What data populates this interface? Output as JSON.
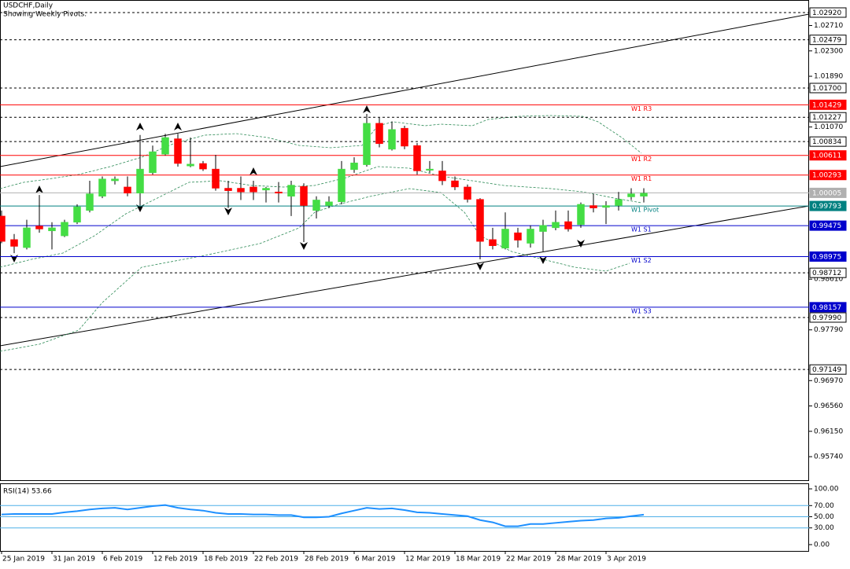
{
  "chart_data": [
    {
      "type": "candlestick",
      "title": "USDCHF,Daily",
      "subtitle": "Showing Weekly Pivots.",
      "categories": [
        "25 Jan 2019",
        null,
        null,
        null,
        "31 Jan 2019",
        null,
        null,
        null,
        "6 Feb 2019",
        null,
        null,
        null,
        "12 Feb 2019",
        null,
        null,
        null,
        "18 Feb 2019",
        null,
        null,
        null,
        "22 Feb 2019",
        null,
        null,
        null,
        "28 Feb 2019",
        null,
        null,
        null,
        "6 Mar 2019",
        null,
        null,
        null,
        "12 Mar 2019",
        null,
        null,
        null,
        "18 Mar 2019",
        null,
        null,
        null,
        "22 Mar 2019",
        null,
        null,
        null,
        "28 Mar 2019",
        null,
        null,
        null,
        "3 Apr 2019",
        null,
        null,
        null
      ],
      "open": [
        0.9963,
        0.9925,
        0.9912,
        0.9947,
        0.9939,
        0.9931,
        0.9953,
        0.9972,
        0.9995,
        1.002,
        1.001,
        1.0,
        1.0033,
        1.0063,
        1.0088,
        1.0044,
        1.0048,
        1.0039,
        1.0008,
        1.0008,
        1.001,
        1.0005,
        1.0002,
        0.9995,
        1.0011,
        0.9972,
        0.998,
        0.9986,
        1.0038,
        1.0046,
        1.0113,
        1.0071,
        1.0105,
        1.0077,
        1.0037,
        1.0036,
        1.002,
        1.001,
        0.999,
        0.9925,
        0.9911,
        0.9936,
        0.9919,
        0.9938,
        0.9944,
        0.9954,
        0.9949,
        0.998,
        0.9977,
        0.998,
        0.9994,
        0.9995
      ],
      "high": [
        0.9972,
        0.9934,
        0.9957,
        0.9997,
        0.9953,
        0.9957,
        0.9982,
        1.002,
        1.0027,
        1.0027,
        1.0027,
        1.0094,
        1.0077,
        1.0096,
        1.0096,
        1.009,
        1.0052,
        1.0062,
        1.002,
        1.0027,
        1.002,
        1.001,
        1.0018,
        1.002,
        1.0016,
        0.9995,
        0.9995,
        1.0052,
        1.0058,
        1.0128,
        1.0122,
        1.0116,
        1.0109,
        1.0081,
        1.0052,
        1.0052,
        1.0027,
        1.0014,
        0.9992,
        0.9944,
        0.9969,
        0.9944,
        0.9948,
        0.9957,
        0.9972,
        0.9972,
        0.9985,
        0.9999,
        0.9987,
        1.0002,
        1.0008,
        1.0008
      ],
      "low": [
        0.9919,
        0.9903,
        0.9909,
        0.9936,
        0.9909,
        0.9929,
        0.995,
        0.9969,
        0.9992,
        1.0014,
        0.9995,
        0.998,
        1.003,
        1.0061,
        1.0043,
        1.0042,
        1.0036,
        1.0004,
        0.9976,
        0.9989,
        0.9989,
        0.9985,
        0.9985,
        0.9963,
        0.9921,
        0.9959,
        0.9976,
        0.9982,
        1.0033,
        1.0043,
        1.0074,
        1.0069,
        1.0071,
        1.003,
        1.0033,
        1.0013,
        1.0005,
        0.9985,
        0.9893,
        0.9909,
        0.9909,
        0.9912,
        0.9912,
        0.9906,
        0.994,
        0.9938,
        0.9944,
        0.9969,
        0.995,
        0.9972,
        0.9989,
        0.9985
      ],
      "close": [
        0.9922,
        0.9914,
        0.9944,
        0.9942,
        0.9944,
        0.9953,
        0.9978,
        0.9999,
        1.0023,
        1.0023,
        1.0,
        1.0039,
        1.0067,
        1.009,
        1.0048,
        1.0047,
        1.0039,
        1.0008,
        1.0004,
        1.0002,
        1.0002,
        1.0008,
        1.0,
        1.0013,
        0.998,
        0.9989,
        0.9986,
        1.0039,
        1.0049,
        1.0113,
        1.008,
        1.0103,
        1.0076,
        1.0036,
        1.0039,
        1.002,
        1.001,
        0.999,
        0.9922,
        0.9915,
        0.9942,
        0.9924,
        0.9942,
        0.9948,
        0.9953,
        0.9942,
        0.9982,
        0.9976,
        0.998,
        0.999,
        0.9999,
        1.0
      ],
      "up_color": "#44dd44",
      "down_color": "#ff0000",
      "ylim": [
        0.95347,
        1.03123
      ],
      "yticks": [
        {
          "value": 1.0271,
          "label": "1.02710"
        },
        {
          "value": 1.023,
          "label": "1.02300"
        },
        {
          "value": 1.0189,
          "label": "1.01890"
        },
        {
          "value": 1.0107,
          "label": "1.01070"
        },
        {
          "value": 0.9861,
          "label": "0.98610"
        },
        {
          "value": 0.9779,
          "label": "0.97790"
        },
        {
          "value": 0.9697,
          "label": "0.96970"
        },
        {
          "value": 0.9656,
          "label": "0.96560"
        },
        {
          "value": 0.9615,
          "label": "0.96150"
        },
        {
          "value": 0.9574,
          "label": "0.95740"
        }
      ],
      "levels": [
        {
          "value": 1.0292,
          "label": "1.02920",
          "color": "#000000",
          "dashed": true
        },
        {
          "value": 1.02479,
          "label": "1.02479",
          "color": "#000000",
          "dashed": true
        },
        {
          "value": 1.017,
          "label": "1.01700",
          "color": "#000000",
          "dashed": true
        },
        {
          "value": 1.01429,
          "label": "1.01429",
          "color": "#ff0000",
          "dashed": false,
          "tag": "W1 R3"
        },
        {
          "value": 1.01227,
          "label": "1.01227",
          "color": "#000000",
          "dashed": true
        },
        {
          "value": 1.00834,
          "label": "1.00834",
          "color": "#000000",
          "dashed": true
        },
        {
          "value": 1.00611,
          "label": "1.00611",
          "color": "#ff0000",
          "dashed": false,
          "tag": "W1 R2"
        },
        {
          "value": 1.00293,
          "label": "1.00293",
          "color": "#ff0000",
          "dashed": false,
          "tag": "W1 R1"
        },
        {
          "value": 1.00005,
          "label": "1.00005",
          "color": "#b0b0b0",
          "dashed": false
        },
        {
          "value": 0.99793,
          "label": "0.99793",
          "color": "#008080",
          "dashed": false,
          "tag": "W1 Pivot"
        },
        {
          "value": 0.99475,
          "label": "0.99475",
          "color": "#0000cc",
          "dashed": false,
          "tag": "W1 S1"
        },
        {
          "value": 0.98975,
          "label": "0.98975",
          "color": "#0000cc",
          "dashed": false,
          "tag": "W1 S2"
        },
        {
          "value": 0.98712,
          "label": "0.98712",
          "color": "#000000",
          "dashed": true
        },
        {
          "value": 0.98157,
          "label": "0.98157",
          "color": "#0000cc",
          "dashed": false,
          "tag": "W1 S3"
        },
        {
          "value": 0.9799,
          "label": "0.97990",
          "color": "#000000",
          "dashed": true
        },
        {
          "value": 0.97149,
          "label": "0.97149",
          "color": "#000000",
          "dashed": true
        }
      ]
    },
    {
      "type": "line",
      "title": "RSI(14) 53.66",
      "values": [
        54,
        55,
        55,
        55,
        55,
        58,
        60,
        63,
        65,
        66,
        63,
        66,
        69,
        71,
        66,
        63,
        61,
        57,
        55,
        55,
        54,
        54,
        53,
        53,
        49,
        49,
        50,
        56,
        61,
        66,
        64,
        65,
        62,
        58,
        57,
        55,
        53,
        51,
        44,
        40,
        33,
        33,
        37,
        37,
        39,
        41,
        43,
        44,
        47,
        48,
        51,
        53.66
      ],
      "color": "#1e90ff",
      "ylim": [
        -11.3,
        109.9
      ],
      "yticks": [
        {
          "value": 100,
          "label": "100.00"
        },
        {
          "value": 70,
          "label": "70.00"
        },
        {
          "value": 50,
          "label": "50.00"
        },
        {
          "value": 30,
          "label": "30.00"
        },
        {
          "value": 0,
          "label": "0.00"
        }
      ],
      "levels": [
        70,
        50,
        30
      ],
      "level_color": "#4fb0e8"
    }
  ]
}
